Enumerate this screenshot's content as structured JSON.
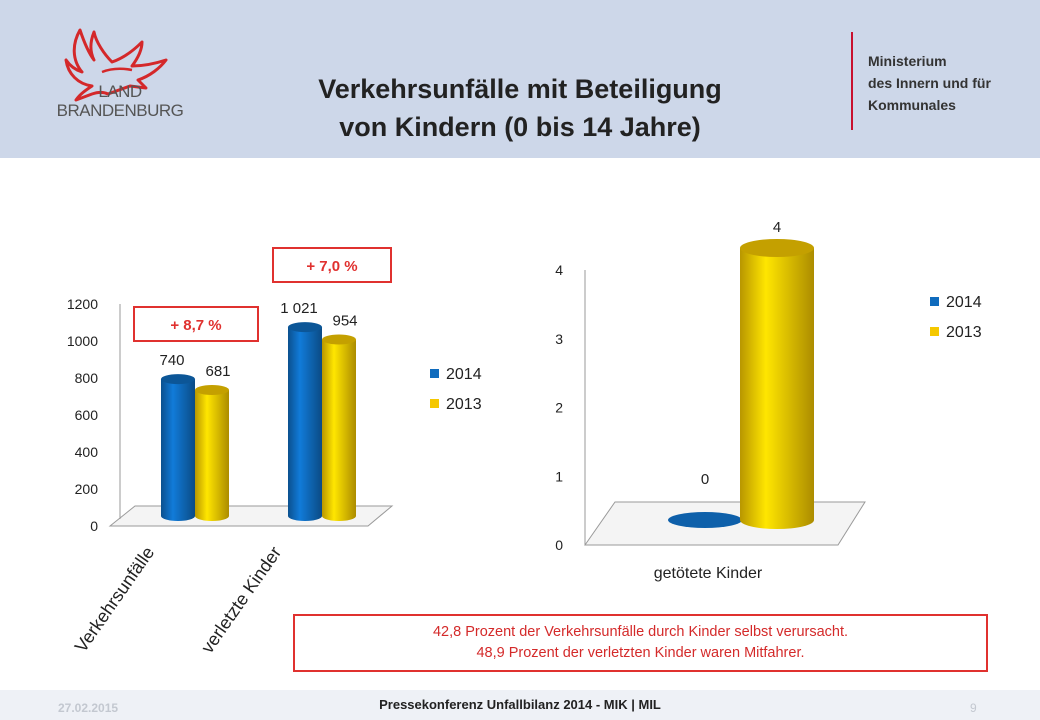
{
  "header": {
    "brand_line1": "LAND",
    "brand_line2": "BRANDENBURG",
    "title_line1": "Verkehrsunfälle mit Beteiligung",
    "title_line2": "von Kindern (0 bis 14 Jahre)",
    "ministry_line1": "Ministerium",
    "ministry_line2": "des Innern und für",
    "ministry_line3": "Kommunales"
  },
  "colors": {
    "header_bg": "#cdd7e9",
    "series_2014": "#0f6bbd",
    "series_2013": "#f5c800",
    "accent_red": "#e0312f"
  },
  "chart_data": [
    {
      "type": "bar",
      "categories": [
        "Verkehrsunfälle",
        "verletzte Kinder"
      ],
      "series": [
        {
          "name": "2014",
          "values": [
            740,
            1021
          ],
          "labels": [
            "740",
            "1 021"
          ]
        },
        {
          "name": "2013",
          "values": [
            681,
            954
          ],
          "labels": [
            "681",
            "954"
          ]
        }
      ],
      "yticks": [
        "0",
        "200",
        "400",
        "600",
        "800",
        "1000",
        "1200"
      ],
      "ylim": [
        0,
        1200
      ],
      "annotations": [
        "+ 8,7 %",
        "+ 7,0 %"
      ],
      "legend_position": "right"
    },
    {
      "type": "bar",
      "categories": [
        "getötete Kinder"
      ],
      "series": [
        {
          "name": "2014",
          "values": [
            0
          ],
          "labels": [
            "0"
          ]
        },
        {
          "name": "2013",
          "values": [
            4
          ],
          "labels": [
            "4"
          ]
        }
      ],
      "yticks": [
        "0",
        "1",
        "2",
        "3",
        "4"
      ],
      "ylim": [
        0,
        4
      ],
      "legend_position": "right"
    }
  ],
  "note": {
    "line1": "42,8 Prozent der Verkehrsunfälle durch Kinder selbst verursacht.",
    "line2": "48,9 Prozent der verletzten Kinder waren Mitfahrer."
  },
  "footer": {
    "date": "27.02.2015",
    "center": "Pressekonferenz Unfallbilanz 2014 - MIK | MIL",
    "page": "9"
  }
}
